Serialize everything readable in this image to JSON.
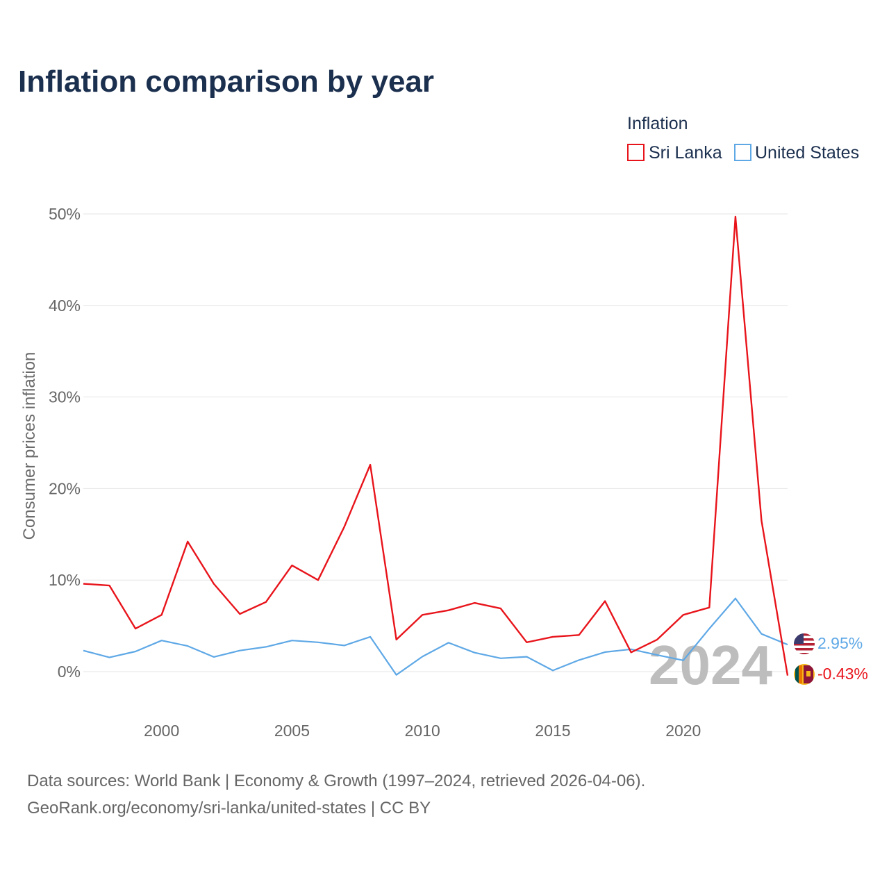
{
  "title": "Inflation comparison by year",
  "legend_title": "Inflation",
  "watermark_year": "2024",
  "source_line1": "Data sources: World Bank | Economy & Growth (1997–2024, retrieved 2026-04-06).",
  "source_line2": "GeoRank.org/economy/sri-lanka/united-states | CC BY",
  "chart_data": {
    "type": "line",
    "title": "Inflation comparison by year",
    "xlabel": "",
    "ylabel": "Consumer prices inflation",
    "xlim": [
      1997,
      2024
    ],
    "ylim": [
      0,
      50
    ],
    "x_ticks": [
      2000,
      2005,
      2010,
      2015,
      2020
    ],
    "x_tick_labels": [
      "2000",
      "2005",
      "2010",
      "2015",
      "2020"
    ],
    "y_ticks": [
      0,
      10,
      20,
      30,
      40,
      50
    ],
    "y_tick_labels": [
      "0%",
      "10%",
      "20%",
      "30%",
      "40%",
      "50%"
    ],
    "legend_position": "top-right",
    "x": [
      1997,
      1998,
      1999,
      2000,
      2001,
      2002,
      2003,
      2004,
      2005,
      2006,
      2007,
      2008,
      2009,
      2010,
      2011,
      2012,
      2013,
      2014,
      2015,
      2016,
      2017,
      2018,
      2019,
      2020,
      2021,
      2022,
      2023,
      2024
    ],
    "series": [
      {
        "name": "Sri Lanka",
        "color": "#e8141b",
        "end_label": "-0.43%",
        "flag_icon": "sri-lanka-flag-icon",
        "values": [
          9.6,
          9.4,
          4.7,
          6.2,
          14.2,
          9.6,
          6.3,
          7.6,
          11.6,
          10.0,
          15.8,
          22.6,
          3.5,
          6.2,
          6.7,
          7.5,
          6.9,
          3.2,
          3.8,
          4.0,
          7.7,
          2.1,
          3.5,
          6.2,
          7.0,
          49.7,
          16.5,
          -0.43
        ]
      },
      {
        "name": "United States",
        "color": "#5ea8e6",
        "end_label": "2.95%",
        "flag_icon": "us-flag-icon",
        "values": [
          2.3,
          1.55,
          2.2,
          3.4,
          2.8,
          1.6,
          2.3,
          2.7,
          3.4,
          3.2,
          2.85,
          3.8,
          -0.36,
          1.64,
          3.16,
          2.07,
          1.46,
          1.62,
          0.12,
          1.26,
          2.13,
          2.44,
          1.81,
          1.23,
          4.7,
          8.0,
          4.12,
          2.95
        ]
      }
    ]
  }
}
